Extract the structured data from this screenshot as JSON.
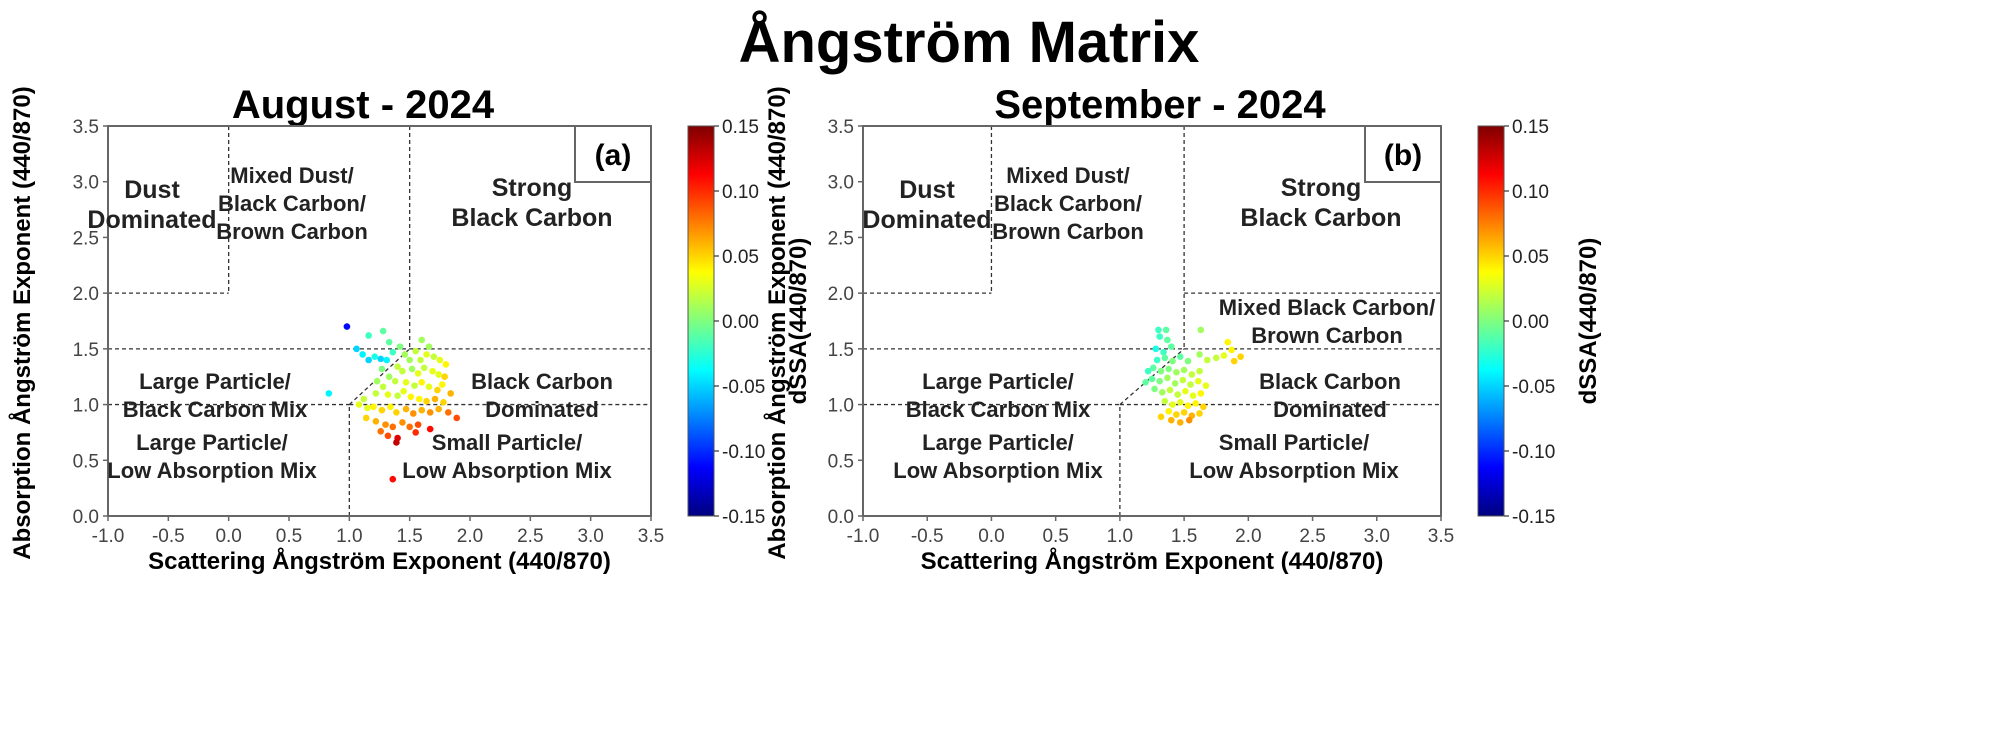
{
  "title": "Ångström Matrix",
  "colors": {
    "colormap": [
      "#00007f",
      "#0000ff",
      "#007fff",
      "#00ffff",
      "#7fff7f",
      "#ffff00",
      "#ff7f00",
      "#ff0000",
      "#7f0000"
    ],
    "boundary_line": "#333333",
    "frame": "#666666"
  },
  "chart_data": [
    {
      "type": "scatter",
      "title": "August - 2024",
      "panel_letter": "(a)",
      "xlabel": "Scattering Ångström Exponent (440/870)",
      "ylabel": "Absorption Ångström Exponent (440/870)",
      "xlim": [
        -1.0,
        3.5
      ],
      "ylim": [
        0.0,
        3.5
      ],
      "x_ticks": [
        "-1.0",
        "-0.5",
        "0.0",
        "0.5",
        "1.0",
        "1.5",
        "2.0",
        "2.5",
        "3.0",
        "3.5"
      ],
      "y_ticks": [
        "0.0",
        "0.5",
        "1.0",
        "1.5",
        "2.0",
        "2.5",
        "3.0",
        "3.5"
      ],
      "colorbar": {
        "label": "dSSA(440/870)",
        "range": [
          -0.15,
          0.15
        ],
        "ticks": [
          "0.15",
          "0.10",
          "0.05",
          "0.00",
          "-0.05",
          "-0.10",
          "-0.15"
        ]
      },
      "regions": [
        {
          "lines": [
            "Dust",
            "Dominated"
          ]
        },
        {
          "lines": [
            "Mixed Dust/",
            "Black Carbon/",
            "Brown Carbon"
          ]
        },
        {
          "lines": [
            "Strong",
            "Black Carbon"
          ]
        },
        {
          "lines": [
            "Large Particle/",
            "Black Carbon Mix"
          ]
        },
        {
          "lines": [
            "Black Carbon",
            "Dominated"
          ]
        },
        {
          "lines": [
            "Large Particle/",
            "Low Absorption Mix"
          ]
        },
        {
          "lines": [
            "Small Particle/",
            "Low Absorption Mix"
          ]
        }
      ],
      "points": [
        {
          "x": 0.98,
          "y": 1.7,
          "c": -0.11
        },
        {
          "x": 0.83,
          "y": 1.1,
          "c": -0.04
        },
        {
          "x": 1.06,
          "y": 1.5,
          "c": -0.05
        },
        {
          "x": 1.11,
          "y": 1.45,
          "c": -0.04
        },
        {
          "x": 1.16,
          "y": 1.4,
          "c": -0.05
        },
        {
          "x": 1.21,
          "y": 1.43,
          "c": -0.03
        },
        {
          "x": 1.26,
          "y": 1.41,
          "c": -0.05
        },
        {
          "x": 1.31,
          "y": 1.4,
          "c": -0.04
        },
        {
          "x": 1.36,
          "y": 1.47,
          "c": -0.02
        },
        {
          "x": 1.16,
          "y": 1.62,
          "c": -0.02
        },
        {
          "x": 1.28,
          "y": 1.66,
          "c": -0.01
        },
        {
          "x": 1.33,
          "y": 1.56,
          "c": -0.01
        },
        {
          "x": 1.42,
          "y": 1.52,
          "c": 0.0
        },
        {
          "x": 1.46,
          "y": 1.45,
          "c": 0.01
        },
        {
          "x": 1.5,
          "y": 1.4,
          "c": 0.01
        },
        {
          "x": 1.55,
          "y": 1.48,
          "c": 0.02
        },
        {
          "x": 1.59,
          "y": 1.4,
          "c": 0.02
        },
        {
          "x": 1.64,
          "y": 1.45,
          "c": 0.03
        },
        {
          "x": 1.7,
          "y": 1.43,
          "c": 0.02
        },
        {
          "x": 1.75,
          "y": 1.4,
          "c": 0.03
        },
        {
          "x": 1.8,
          "y": 1.36,
          "c": 0.04
        },
        {
          "x": 1.6,
          "y": 1.58,
          "c": 0.01
        },
        {
          "x": 1.66,
          "y": 1.52,
          "c": 0.01
        },
        {
          "x": 1.4,
          "y": 1.34,
          "c": 0.02
        },
        {
          "x": 1.44,
          "y": 1.3,
          "c": 0.02
        },
        {
          "x": 1.52,
          "y": 1.32,
          "c": 0.01
        },
        {
          "x": 1.57,
          "y": 1.28,
          "c": 0.03
        },
        {
          "x": 1.62,
          "y": 1.33,
          "c": 0.02
        },
        {
          "x": 1.69,
          "y": 1.3,
          "c": 0.03
        },
        {
          "x": 1.74,
          "y": 1.27,
          "c": 0.03
        },
        {
          "x": 1.79,
          "y": 1.25,
          "c": 0.05
        },
        {
          "x": 1.27,
          "y": 1.32,
          "c": 0.0
        },
        {
          "x": 1.33,
          "y": 1.25,
          "c": 0.01
        },
        {
          "x": 1.38,
          "y": 1.21,
          "c": 0.02
        },
        {
          "x": 1.47,
          "y": 1.2,
          "c": 0.03
        },
        {
          "x": 1.54,
          "y": 1.17,
          "c": 0.02
        },
        {
          "x": 1.6,
          "y": 1.2,
          "c": 0.04
        },
        {
          "x": 1.66,
          "y": 1.16,
          "c": 0.03
        },
        {
          "x": 1.73,
          "y": 1.13,
          "c": 0.05
        },
        {
          "x": 1.23,
          "y": 1.21,
          "c": 0.01
        },
        {
          "x": 1.28,
          "y": 1.16,
          "c": 0.02
        },
        {
          "x": 1.22,
          "y": 1.1,
          "c": 0.02
        },
        {
          "x": 1.32,
          "y": 1.09,
          "c": 0.03
        },
        {
          "x": 1.4,
          "y": 1.08,
          "c": 0.02
        },
        {
          "x": 1.45,
          "y": 1.12,
          "c": 0.03
        },
        {
          "x": 1.51,
          "y": 1.07,
          "c": 0.04
        },
        {
          "x": 1.58,
          "y": 1.05,
          "c": 0.04
        },
        {
          "x": 1.64,
          "y": 1.03,
          "c": 0.05
        },
        {
          "x": 1.71,
          "y": 1.05,
          "c": 0.06
        },
        {
          "x": 1.78,
          "y": 1.02,
          "c": 0.05
        },
        {
          "x": 1.12,
          "y": 1.05,
          "c": 0.02
        },
        {
          "x": 1.08,
          "y": 1.0,
          "c": 0.03
        },
        {
          "x": 1.15,
          "y": 0.97,
          "c": 0.03
        },
        {
          "x": 1.2,
          "y": 0.98,
          "c": 0.04
        },
        {
          "x": 1.27,
          "y": 0.95,
          "c": 0.05
        },
        {
          "x": 1.34,
          "y": 0.98,
          "c": 0.04
        },
        {
          "x": 1.39,
          "y": 0.93,
          "c": 0.05
        },
        {
          "x": 1.47,
          "y": 0.96,
          "c": 0.06
        },
        {
          "x": 1.53,
          "y": 0.92,
          "c": 0.07
        },
        {
          "x": 1.6,
          "y": 0.95,
          "c": 0.06
        },
        {
          "x": 1.67,
          "y": 0.93,
          "c": 0.07
        },
        {
          "x": 1.74,
          "y": 0.96,
          "c": 0.06
        },
        {
          "x": 1.82,
          "y": 0.93,
          "c": 0.08
        },
        {
          "x": 1.89,
          "y": 0.88,
          "c": 0.09
        },
        {
          "x": 1.77,
          "y": 1.18,
          "c": 0.04
        },
        {
          "x": 1.84,
          "y": 1.1,
          "c": 0.06
        },
        {
          "x": 1.14,
          "y": 0.88,
          "c": 0.05
        },
        {
          "x": 1.22,
          "y": 0.85,
          "c": 0.06
        },
        {
          "x": 1.3,
          "y": 0.82,
          "c": 0.07
        },
        {
          "x": 1.36,
          "y": 0.8,
          "c": 0.08
        },
        {
          "x": 1.44,
          "y": 0.84,
          "c": 0.07
        },
        {
          "x": 1.5,
          "y": 0.8,
          "c": 0.08
        },
        {
          "x": 1.57,
          "y": 0.82,
          "c": 0.09
        },
        {
          "x": 1.26,
          "y": 0.76,
          "c": 0.08
        },
        {
          "x": 1.32,
          "y": 0.72,
          "c": 0.09
        },
        {
          "x": 1.4,
          "y": 0.7,
          "c": 0.12
        },
        {
          "x": 1.39,
          "y": 0.66,
          "c": 0.13
        },
        {
          "x": 1.55,
          "y": 0.75,
          "c": 0.1
        },
        {
          "x": 1.67,
          "y": 0.78,
          "c": 0.11
        },
        {
          "x": 1.36,
          "y": 0.33,
          "c": 0.11
        }
      ]
    },
    {
      "type": "scatter",
      "title": "September - 2024",
      "panel_letter": "(b)",
      "xlabel": "Scattering Ångström Exponent (440/870)",
      "ylabel": "Absorption Ångström Exponent (440/870)",
      "xlim": [
        -1.0,
        3.5
      ],
      "ylim": [
        0.0,
        3.5
      ],
      "x_ticks": [
        "-1.0",
        "-0.5",
        "0.0",
        "0.5",
        "1.0",
        "1.5",
        "2.0",
        "2.5",
        "3.0",
        "3.5"
      ],
      "y_ticks": [
        "0.0",
        "0.5",
        "1.0",
        "1.5",
        "2.0",
        "2.5",
        "3.0",
        "3.5"
      ],
      "colorbar": {
        "label": "dSSA(440/870)",
        "range": [
          -0.15,
          0.15
        ],
        "ticks": [
          "0.15",
          "0.10",
          "0.05",
          "0.00",
          "-0.05",
          "-0.10",
          "-0.15"
        ]
      },
      "regions": [
        {
          "lines": [
            "Dust",
            "Dominated"
          ]
        },
        {
          "lines": [
            "Mixed Dust/",
            "Black Carbon/",
            "Brown Carbon"
          ]
        },
        {
          "lines": [
            "Strong",
            "Black Carbon"
          ]
        },
        {
          "lines": [
            "Mixed Black Carbon/",
            "Brown Carbon"
          ]
        },
        {
          "lines": [
            "Large Particle/",
            "Black Carbon Mix"
          ]
        },
        {
          "lines": [
            "Black Carbon",
            "Dominated"
          ]
        },
        {
          "lines": [
            "Large Particle/",
            "Low Absorption Mix"
          ]
        },
        {
          "lines": [
            "Small Particle/",
            "Low Absorption Mix"
          ]
        }
      ],
      "points": [
        {
          "x": 1.3,
          "y": 1.67,
          "c": -0.02
        },
        {
          "x": 1.36,
          "y": 1.67,
          "c": -0.01
        },
        {
          "x": 1.31,
          "y": 1.61,
          "c": -0.02
        },
        {
          "x": 1.37,
          "y": 1.58,
          "c": -0.01
        },
        {
          "x": 1.28,
          "y": 1.5,
          "c": -0.03
        },
        {
          "x": 1.34,
          "y": 1.47,
          "c": -0.02
        },
        {
          "x": 1.4,
          "y": 1.52,
          "c": -0.01
        },
        {
          "x": 1.29,
          "y": 1.4,
          "c": -0.02
        },
        {
          "x": 1.35,
          "y": 1.42,
          "c": -0.01
        },
        {
          "x": 1.41,
          "y": 1.39,
          "c": 0.0
        },
        {
          "x": 1.47,
          "y": 1.43,
          "c": -0.01
        },
        {
          "x": 1.53,
          "y": 1.39,
          "c": 0.0
        },
        {
          "x": 1.63,
          "y": 1.67,
          "c": 0.01
        },
        {
          "x": 1.62,
          "y": 1.45,
          "c": 0.01
        },
        {
          "x": 1.68,
          "y": 1.4,
          "c": 0.02
        },
        {
          "x": 1.84,
          "y": 1.56,
          "c": 0.04
        },
        {
          "x": 1.87,
          "y": 1.49,
          "c": 0.04
        },
        {
          "x": 1.81,
          "y": 1.44,
          "c": 0.03
        },
        {
          "x": 1.94,
          "y": 1.43,
          "c": 0.05
        },
        {
          "x": 1.89,
          "y": 1.39,
          "c": 0.05
        },
        {
          "x": 1.75,
          "y": 1.42,
          "c": 0.02
        },
        {
          "x": 1.26,
          "y": 1.33,
          "c": -0.01
        },
        {
          "x": 1.32,
          "y": 1.3,
          "c": 0.0
        },
        {
          "x": 1.38,
          "y": 1.32,
          "c": 0.0
        },
        {
          "x": 1.44,
          "y": 1.29,
          "c": 0.01
        },
        {
          "x": 1.5,
          "y": 1.31,
          "c": 0.01
        },
        {
          "x": 1.56,
          "y": 1.27,
          "c": 0.02
        },
        {
          "x": 1.62,
          "y": 1.3,
          "c": 0.02
        },
        {
          "x": 1.25,
          "y": 1.23,
          "c": -0.01
        },
        {
          "x": 1.31,
          "y": 1.21,
          "c": 0.0
        },
        {
          "x": 1.37,
          "y": 1.24,
          "c": 0.01
        },
        {
          "x": 1.43,
          "y": 1.19,
          "c": 0.01
        },
        {
          "x": 1.49,
          "y": 1.22,
          "c": 0.02
        },
        {
          "x": 1.55,
          "y": 1.18,
          "c": 0.02
        },
        {
          "x": 1.61,
          "y": 1.21,
          "c": 0.03
        },
        {
          "x": 1.67,
          "y": 1.17,
          "c": 0.03
        },
        {
          "x": 1.27,
          "y": 1.14,
          "c": 0.0
        },
        {
          "x": 1.33,
          "y": 1.11,
          "c": 0.01
        },
        {
          "x": 1.39,
          "y": 1.13,
          "c": 0.02
        },
        {
          "x": 1.45,
          "y": 1.09,
          "c": 0.02
        },
        {
          "x": 1.51,
          "y": 1.12,
          "c": 0.03
        },
        {
          "x": 1.57,
          "y": 1.08,
          "c": 0.03
        },
        {
          "x": 1.63,
          "y": 1.1,
          "c": 0.04
        },
        {
          "x": 1.35,
          "y": 1.03,
          "c": 0.02
        },
        {
          "x": 1.41,
          "y": 1.0,
          "c": 0.03
        },
        {
          "x": 1.47,
          "y": 1.02,
          "c": 0.03
        },
        {
          "x": 1.53,
          "y": 0.99,
          "c": 0.04
        },
        {
          "x": 1.59,
          "y": 1.01,
          "c": 0.04
        },
        {
          "x": 1.65,
          "y": 0.98,
          "c": 0.05
        },
        {
          "x": 1.38,
          "y": 0.94,
          "c": 0.04
        },
        {
          "x": 1.44,
          "y": 0.91,
          "c": 0.05
        },
        {
          "x": 1.5,
          "y": 0.93,
          "c": 0.05
        },
        {
          "x": 1.56,
          "y": 0.9,
          "c": 0.06
        },
        {
          "x": 1.62,
          "y": 0.92,
          "c": 0.05
        },
        {
          "x": 1.32,
          "y": 0.89,
          "c": 0.05
        },
        {
          "x": 1.4,
          "y": 0.86,
          "c": 0.06
        },
        {
          "x": 1.47,
          "y": 0.84,
          "c": 0.06
        },
        {
          "x": 1.54,
          "y": 0.86,
          "c": 0.07
        },
        {
          "x": 1.22,
          "y": 1.3,
          "c": -0.02
        },
        {
          "x": 1.2,
          "y": 1.2,
          "c": -0.01
        }
      ]
    }
  ]
}
